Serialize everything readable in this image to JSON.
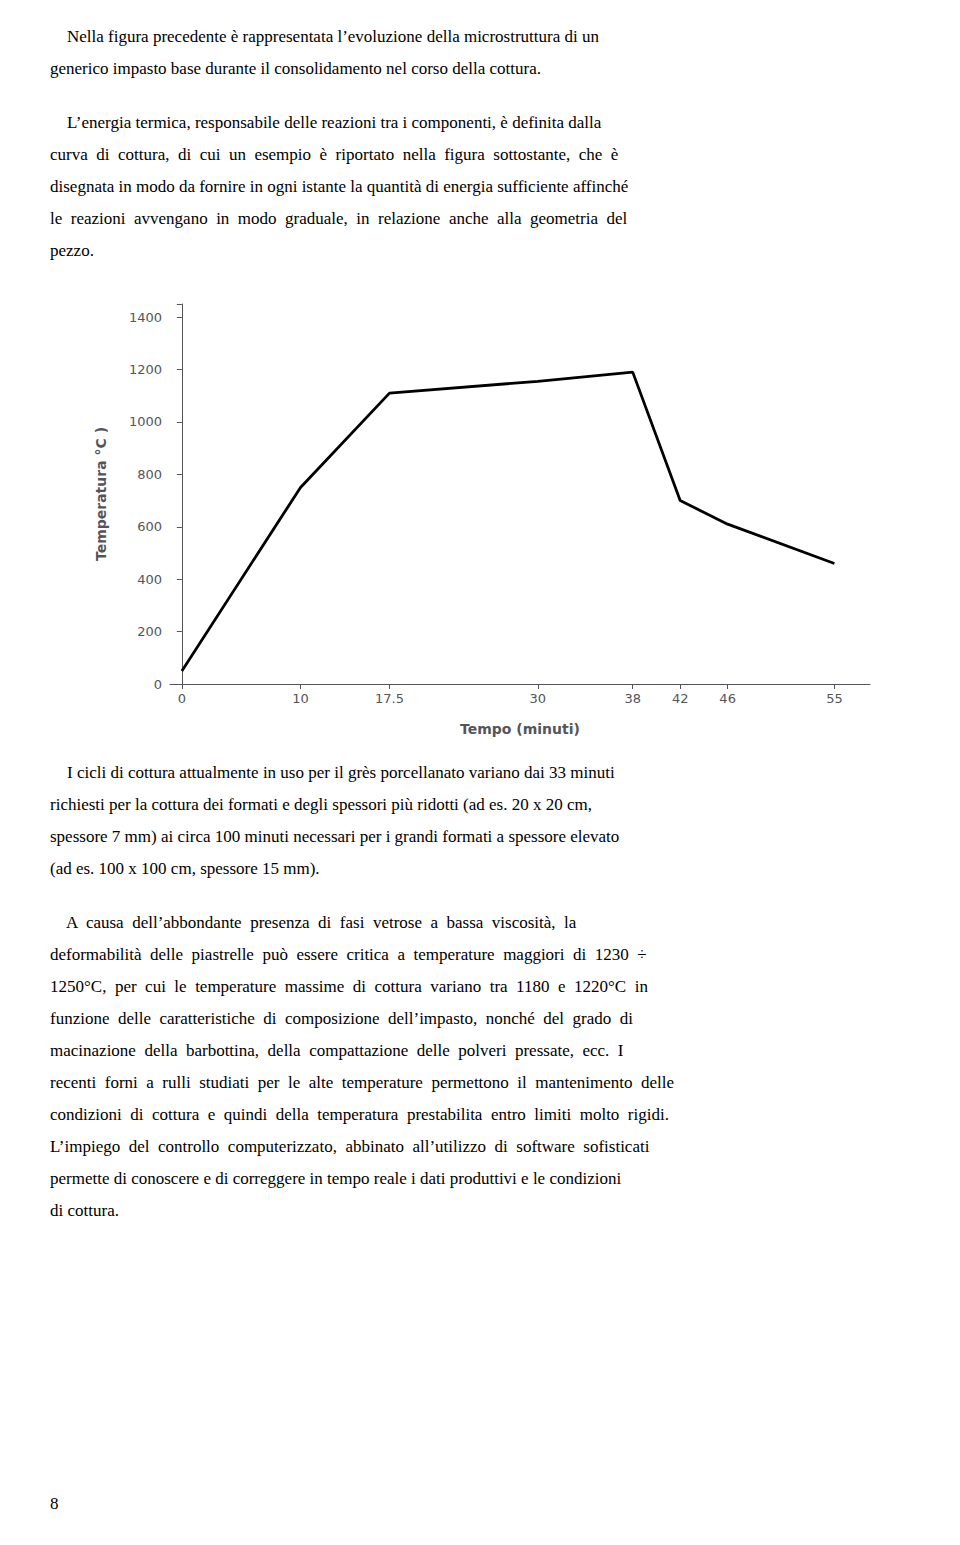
{
  "chart_data": {
    "type": "line",
    "x": [
      0,
      10,
      17.5,
      30,
      38,
      42,
      46,
      55
    ],
    "values": [
      50,
      750,
      1110,
      1155,
      1190,
      700,
      610,
      460
    ],
    "xlabel": "Tempo (minuti)",
    "ylabel": "Temperatura °C )",
    "xlim": [
      -1,
      58
    ],
    "ylim": [
      0,
      1450
    ],
    "xticks": [
      0,
      10,
      17.5,
      30,
      38,
      42,
      46,
      55
    ],
    "yticks": [
      0,
      200,
      400,
      600,
      800,
      1000,
      1200,
      1400
    ],
    "color": "#000000",
    "grid": false,
    "annotations": [
      [
        "    Nella figura precedente è rappresentata l’evoluzione della microstruttura di un",
        "generico impasto base durante il consolidamento nel corso della cottura."
      ],
      [
        "    L’energia termica, responsabile delle reazioni tra i componenti, è definita dalla",
        "curva  di  cottura,  di  cui  un  esempio  è  riportato  nella  figura  sottostante,  che  è",
        "disegnata in modo da fornire in ogni istante la quantità di energia sufficiente affinché",
        "le  reazioni  avvengano  in  modo  graduale,  in  relazione  anche  alla  geometria  del",
        "pezzo."
      ],
      [
        "    I cicli di cottura attualmente in uso per il grès porcellanato variano dai 33 minuti",
        "richiesti per la cottura dei formati e degli spessori più ridotti (ad es. 20 x 20 cm,",
        "spessore 7 mm) ai circa 100 minuti necessari per i grandi formati a spessore elevato",
        "(ad es. 100 x 100 cm, spessore 15 mm)."
      ],
      [
        "    A  causa  dell’abbondante  presenza  di  fasi  vetrose  a  bassa  viscosità,  la",
        "deformabilità  delle  piastrelle  può  essere  critica  a  temperature  maggiori  di  1230  ÷",
        "1250°C,  per  cui  le  temperature  massime  di  cottura  variano  tra  1180  e  1220°C  in",
        "funzione  delle  caratteristiche  di  composizione  dell’impasto,  nonché  del  grado  di",
        "macinazione  della  barbottina,  della  compattazione  delle  polveri  pressate,  ecc.  I",
        "recenti  forni  a  rulli  studiati  per  le  alte  temperature  permettono  il  mantenimento  delle",
        "condizioni  di  cottura  e  quindi  della  temperatura  prestabilita  entro  limiti  molto  rigidi.",
        "L’impiego  del  controllo  computerizzato,  abbinato  all’utilizzo  di  software  sofisticati",
        "permette di conoscere e di correggere in tempo reale i dati produttivi e le condizioni",
        "di cottura."
      ],
      [
        "8"
      ]
    ]
  }
}
